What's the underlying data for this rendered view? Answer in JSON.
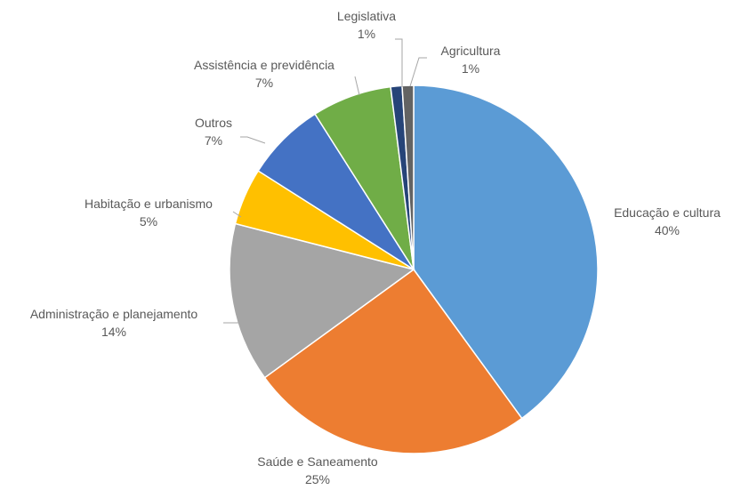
{
  "chart_data": {
    "type": "pie",
    "title": "",
    "slices": [
      {
        "label": "Educação e cultura",
        "value": 40,
        "value_label": "40%",
        "color": "#5B9BD5"
      },
      {
        "label": "Saúde e Saneamento",
        "value": 25,
        "value_label": "25%",
        "color": "#ED7D31"
      },
      {
        "label": "Administração e planejamento",
        "value": 14,
        "value_label": "14%",
        "color": "#A5A5A5"
      },
      {
        "label": "Habitação e urbanismo",
        "value": 5,
        "value_label": "5%",
        "color": "#FFC000"
      },
      {
        "label": "Outros",
        "value": 7,
        "value_label": "7%",
        "color": "#4472C4"
      },
      {
        "label": "Assistência e previdência",
        "value": 7,
        "value_label": "7%",
        "color": "#70AD47"
      },
      {
        "label": "Legislativa",
        "value": 1,
        "value_label": "1%",
        "color": "#264478"
      },
      {
        "label": "Agricultura",
        "value": 1,
        "value_label": "1%",
        "color": "#636363"
      }
    ],
    "start_angle_deg": 0,
    "direction": "clockwise",
    "legend": "none",
    "data_labels": "outside with leader lines"
  }
}
